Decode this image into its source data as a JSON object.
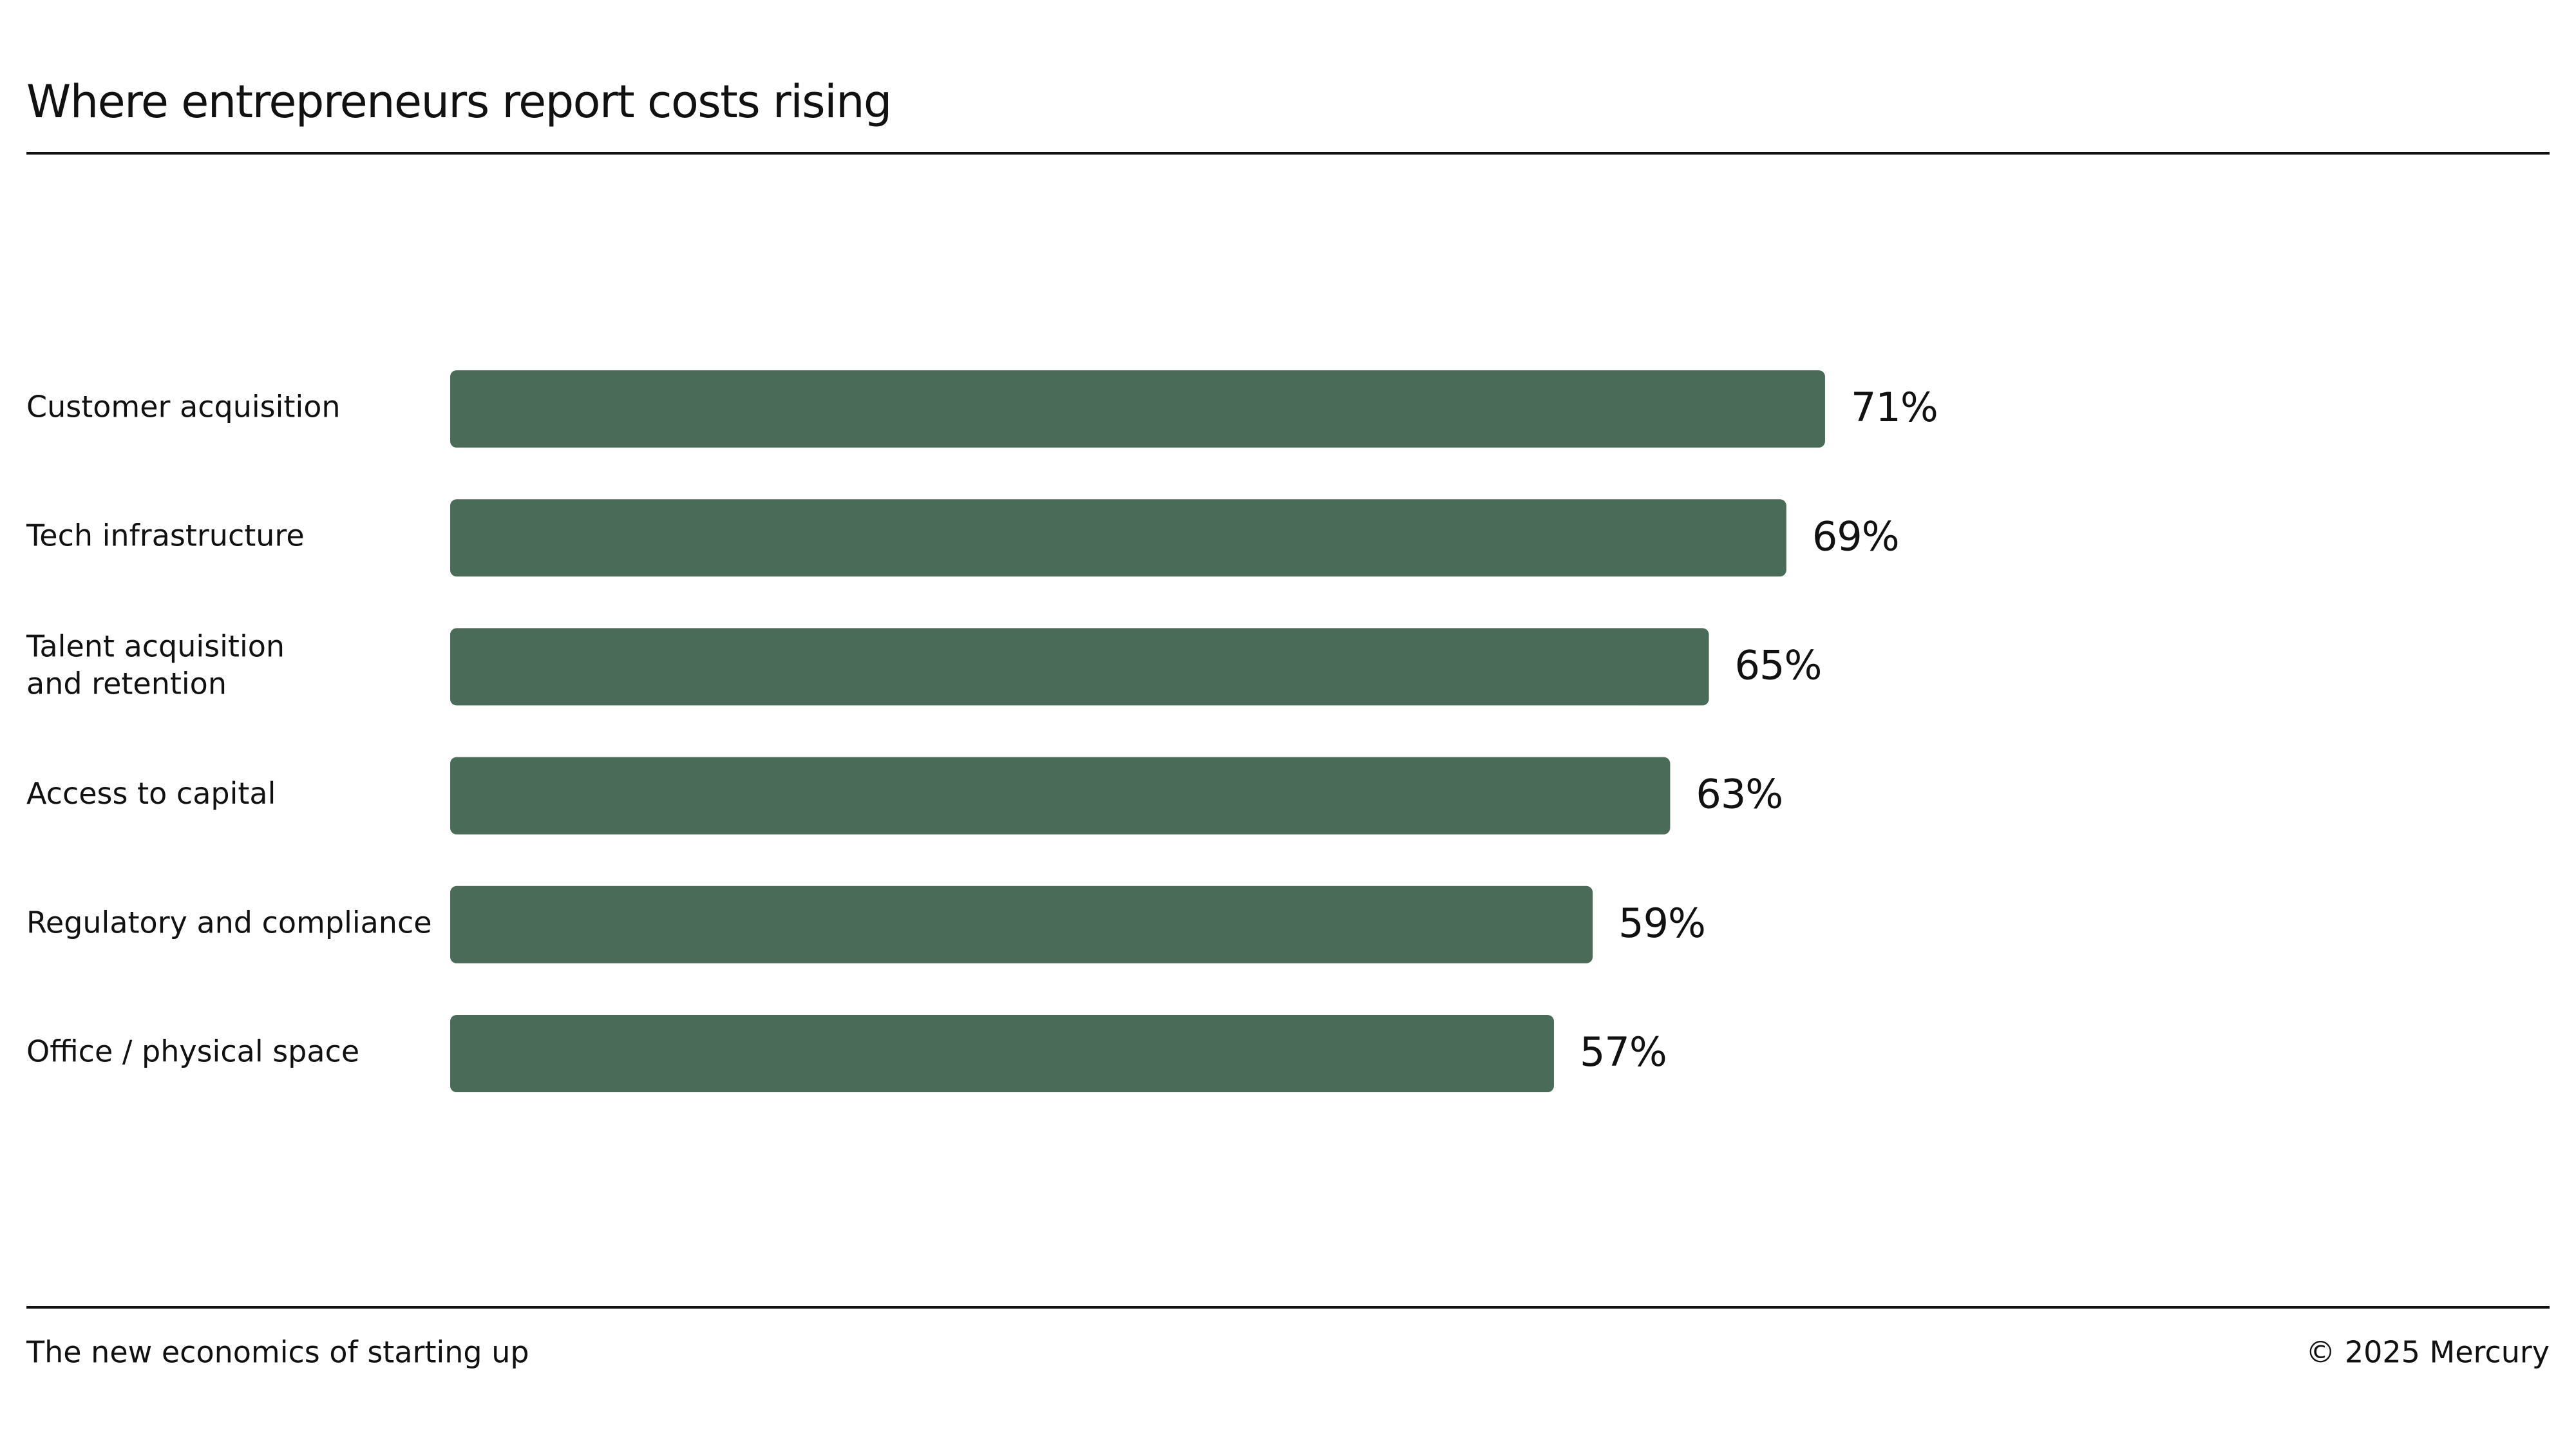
{
  "chart_data": {
    "type": "bar",
    "orientation": "horizontal",
    "title": "Where entrepreneurs report costs rising",
    "categories": [
      "Customer acquisition",
      "Tech infrastructure",
      "Talent acquisition\nand retention",
      "Access to capital",
      "Regulatory and compliance",
      "Office / physical space"
    ],
    "values": [
      71,
      69,
      65,
      63,
      59,
      57
    ],
    "value_labels": [
      "71%",
      "69%",
      "65%",
      "63%",
      "59%",
      "57%"
    ],
    "color": "#4a6b57"
  },
  "footer": {
    "left": "The new economics of starting up",
    "right": "© 2025 Mercury"
  }
}
